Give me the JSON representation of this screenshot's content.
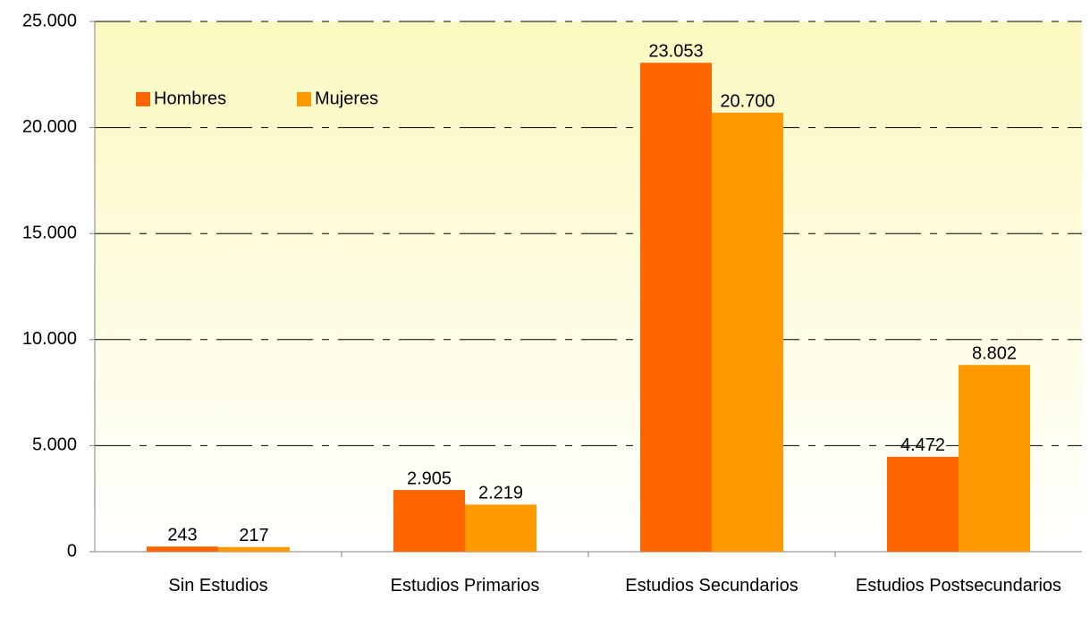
{
  "chart_data": {
    "type": "bar",
    "categories": [
      "Sin Estudios",
      "Estudios Primarios",
      "Estudios Secundarios",
      "Estudios Postsecundarios"
    ],
    "series": [
      {
        "name": "Hombres",
        "color": "#ff6600",
        "values": [
          243,
          2905,
          23053,
          4472
        ],
        "value_labels": [
          "243",
          "2.905",
          "23.053",
          "4.472"
        ]
      },
      {
        "name": "Mujeres",
        "color": "#ff9900",
        "values": [
          217,
          2219,
          20700,
          8802
        ],
        "value_labels": [
          "217",
          "2.219",
          "20.700",
          "8.802"
        ]
      }
    ],
    "ylim": [
      0,
      25000
    ],
    "yticks": [
      0,
      {
        "value": 5000,
        "label": "5.000"
      },
      {
        "value": 10000,
        "label": "10.000"
      },
      {
        "value": 15000,
        "label": "15.000"
      },
      {
        "value": 20000,
        "label": "20.000"
      },
      {
        "value": 25000,
        "label": "25.000"
      }
    ],
    "grid": true,
    "legend": "upper left"
  }
}
